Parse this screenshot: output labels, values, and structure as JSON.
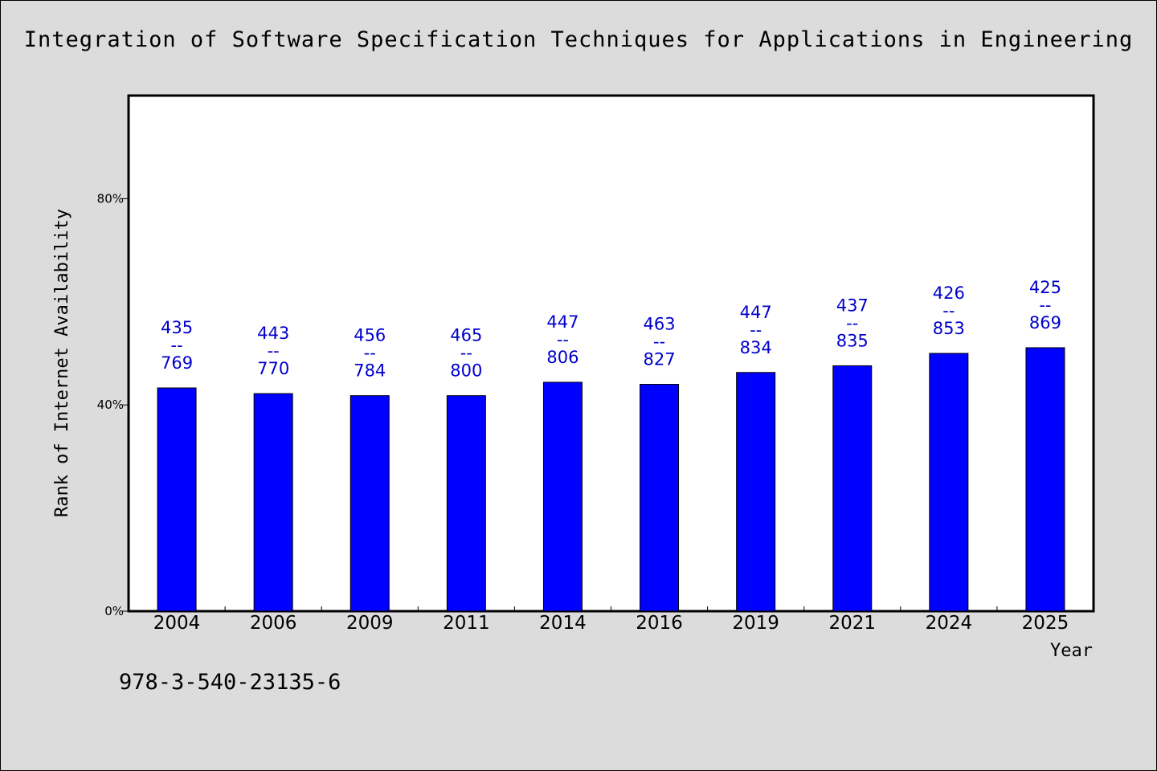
{
  "chart_data": {
    "type": "bar",
    "title": "Integration of Software Specification Techniques for Applications in Engineering",
    "xlabel": "Year",
    "ylabel": "Rank of Internet Availability",
    "categories": [
      "2004",
      "2006",
      "2009",
      "2011",
      "2014",
      "2016",
      "2019",
      "2021",
      "2024",
      "2025"
    ],
    "values": [
      43.3,
      42.2,
      41.8,
      41.8,
      44.4,
      44.0,
      46.3,
      47.6,
      50.0,
      51.1
    ],
    "labels_top": [
      "435",
      "443",
      "456",
      "465",
      "447",
      "463",
      "447",
      "437",
      "426",
      "425"
    ],
    "labels_sep": "--",
    "labels_bottom": [
      "769",
      "770",
      "784",
      "800",
      "806",
      "827",
      "834",
      "835",
      "853",
      "869"
    ],
    "ylim": [
      0,
      100
    ],
    "yticks": [
      0,
      40,
      80
    ],
    "ytick_labels": [
      "0%",
      "40%",
      "80%"
    ],
    "grid": false,
    "colors": {
      "bar": "#0000ff",
      "label": "#0000cc",
      "background": "#dcdcdc",
      "plot": "#ffffff"
    }
  },
  "footnote": "978-3-540-23135-6"
}
